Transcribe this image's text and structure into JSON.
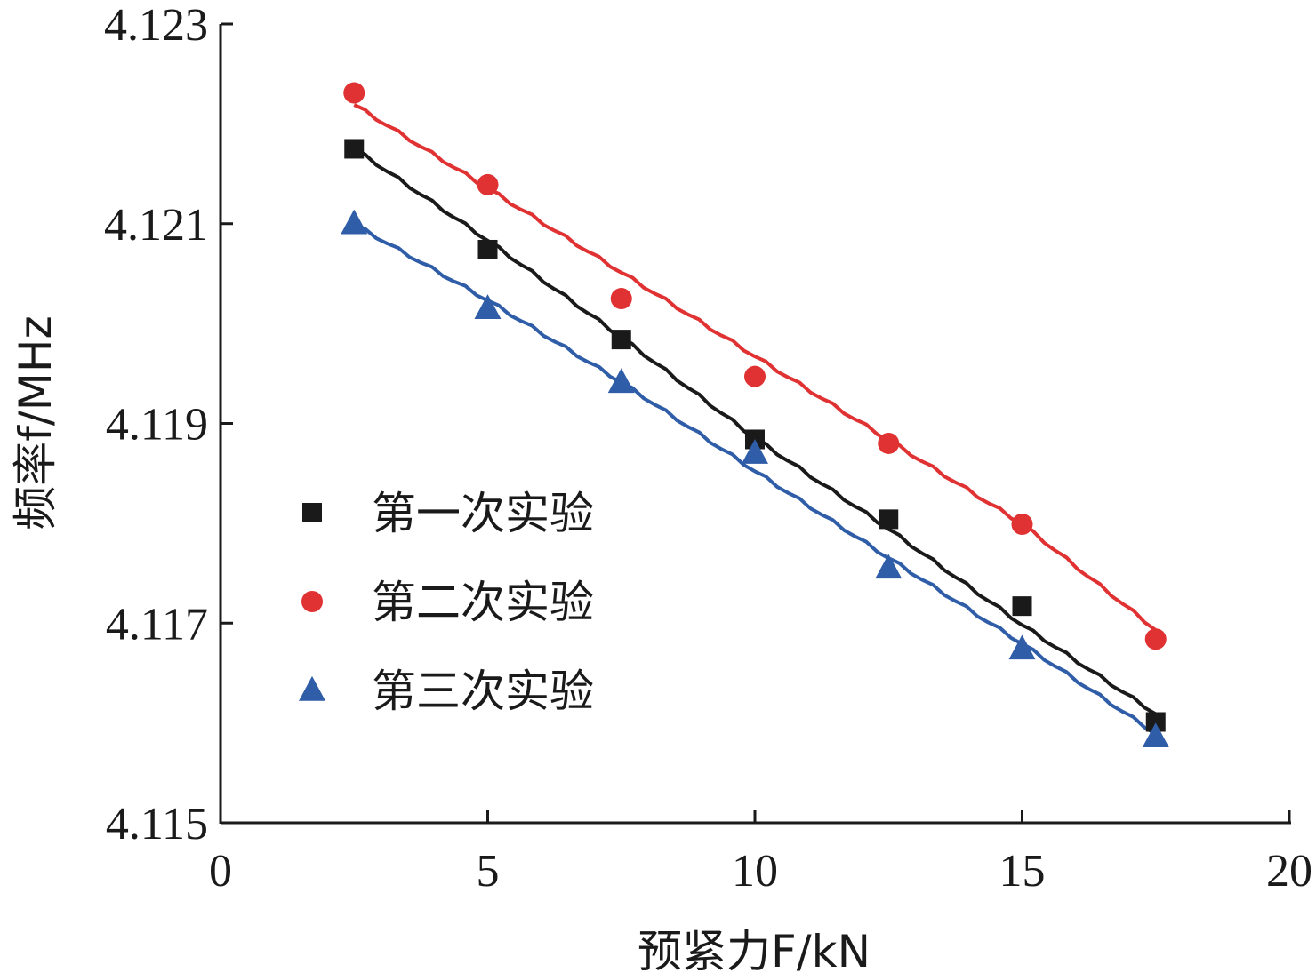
{
  "chart_data": {
    "type": "scatter",
    "title": "",
    "xlabel": "预紧力F/kN",
    "ylabel": "频率f/MHz",
    "xlim": [
      0,
      20
    ],
    "ylim": [
      4.115,
      4.123
    ],
    "x_ticks": [
      "0",
      "5",
      "10",
      "15",
      "20"
    ],
    "y_ticks": [
      "4.115",
      "4.117",
      "4.119",
      "4.121",
      "4.123"
    ],
    "grid": false,
    "legend_position": "center-left",
    "series": [
      {
        "name": "第一次实验",
        "marker": "square",
        "color": "#1a1a1a",
        "x": [
          2.5,
          5,
          7.5,
          10,
          12.5,
          15,
          17.5
        ],
        "y": [
          4.12175,
          4.12074,
          4.11984,
          4.11884,
          4.11804,
          4.11717,
          4.11601
        ],
        "fit": [
          4.12175,
          4.12083,
          4.11986,
          4.11885,
          4.11794,
          4.11698,
          4.11609
        ]
      },
      {
        "name": "第二次实验",
        "marker": "circle",
        "color": "#e03232",
        "x": [
          2.5,
          5,
          7.5,
          10,
          12.5,
          15,
          17.5
        ],
        "y": [
          4.12231,
          4.12139,
          4.12025,
          4.11947,
          4.1188,
          4.11799,
          4.11684
        ],
        "fit": [
          4.12219,
          4.12135,
          4.12051,
          4.11967,
          4.11883,
          4.11799,
          4.11693
        ]
      },
      {
        "name": "第三次实验",
        "marker": "triangle",
        "color": "#2f5da8",
        "x": [
          2.5,
          5,
          7.5,
          10,
          12.5,
          15,
          17.5
        ],
        "y": [
          4.121,
          4.12015,
          4.11941,
          4.1187,
          4.11755,
          4.11674,
          4.11586
        ],
        "fit": [
          4.12099,
          4.12023,
          4.11941,
          4.11852,
          4.11765,
          4.11679,
          4.11589
        ]
      }
    ]
  }
}
